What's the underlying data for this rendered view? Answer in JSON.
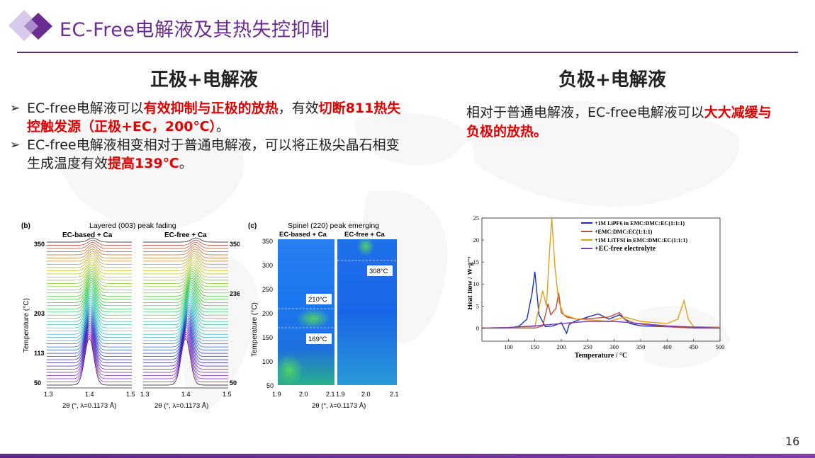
{
  "slide": {
    "title": "EC-Free电解液及其热失控抑制",
    "page_number": "16"
  },
  "left": {
    "heading": "正极+电解液",
    "bullet_mark": "➢",
    "bullet1": {
      "p1": "EC-free电解液可以",
      "r1": "有效抑制与正极的放热",
      "p2": "，有效",
      "r2": "切断811热失控触发源（正极+EC，200℃）",
      "p3": "。"
    },
    "bullet2": {
      "p1": "EC-free电解液相变相对于普通电解液，可以将正极尖晶石相变生成温度有效",
      "r1": "提高139℃",
      "p2": "。"
    }
  },
  "right": {
    "heading": "负极+电解液",
    "p1": "相对于普通电解液，EC-free电解液可以",
    "r1": "大大减缓与负极的放热。"
  },
  "fig_b": {
    "panel": "(b)",
    "title": "Layered (003) peak fading",
    "left_label": "EC-based + Ca",
    "right_label": "EC-free + Ca",
    "ylabel": "Temperature (°C)",
    "xlabel_left": "2θ (°, λ=0.1173 Å)",
    "xlabel_right": "2θ (°, λ=0.1173 Å)",
    "left_ticks": [
      "350",
      "203",
      "113",
      "50"
    ],
    "right_ticks": [
      "350",
      "236",
      "50"
    ],
    "x_ticks_left": [
      "1.3",
      "1.4",
      "1.5"
    ],
    "x_ticks_right": [
      "1.3",
      "1.4",
      "1.5"
    ]
  },
  "fig_c": {
    "panel": "(c)",
    "title": "Spinel (220) peak emerging",
    "left_label": "EC-based + Ca",
    "right_label": "EC-free + Ca",
    "ylabel": "Temperature (°C)",
    "xlabel": "2θ (°, λ=0.1173 Å)",
    "y_ticks": [
      "350",
      "300",
      "250",
      "200",
      "150",
      "100",
      "50"
    ],
    "x_ticks": [
      "1.9",
      "2.0",
      "2.1",
      "1.9",
      "2.0",
      "2.1"
    ],
    "annot_210": "210°C",
    "annot_169": "169°C",
    "annot_308": "308°C"
  },
  "chart_data": {
    "type": "line",
    "title": "",
    "xlabel": "Temperature / °C",
    "ylabel": "Heat flow / W·g⁻¹",
    "xlim": [
      50,
      500
    ],
    "ylim": [
      -3,
      25
    ],
    "x_ticks": [
      "100",
      "150",
      "200",
      "250",
      "300",
      "350",
      "400",
      "450",
      "500"
    ],
    "y_ticks": [
      "0",
      "5",
      "10",
      "15",
      "20",
      "25"
    ],
    "legend_position": "top-right",
    "series": [
      {
        "name": "+1M LiPF6 in EMC:DMC:EC(1:1:1)",
        "color": "#1f2fbf",
        "x": [
          50,
          100,
          120,
          135,
          145,
          150,
          158,
          170,
          185,
          200,
          210,
          215,
          225,
          250,
          270,
          290,
          310,
          330,
          350,
          400,
          450,
          500
        ],
        "y": [
          0,
          0,
          0.4,
          2.0,
          8.0,
          12.8,
          3.0,
          0.3,
          0.5,
          1.2,
          -1.2,
          0.8,
          1.5,
          2.5,
          3.2,
          2.0,
          3.0,
          1.0,
          0.5,
          0.3,
          0,
          0
        ]
      },
      {
        "name": "+EMC:DMC:EC(1:1:1)",
        "color": "#b8503a",
        "x": [
          50,
          150,
          165,
          175,
          180,
          190,
          195,
          200,
          210,
          230,
          260,
          290,
          310,
          320,
          340,
          400,
          450,
          500
        ],
        "y": [
          0,
          0,
          0.5,
          5.5,
          3.0,
          4.5,
          8.0,
          3.5,
          2.5,
          2.0,
          2.2,
          2.5,
          3.5,
          2.0,
          1.0,
          0.3,
          0,
          0
        ]
      },
      {
        "name": "+1M LiTFSI in EMC:DMC:EC(1:1:1)",
        "color": "#e0a01a",
        "x": [
          50,
          150,
          165,
          172,
          178,
          182,
          188,
          195,
          205,
          230,
          260,
          290,
          320,
          350,
          400,
          420,
          432,
          440,
          450,
          500
        ],
        "y": [
          0,
          0.3,
          8.5,
          5.0,
          18.0,
          25.0,
          14.0,
          6.0,
          3.0,
          2.0,
          1.8,
          1.5,
          2.5,
          1.5,
          1.0,
          2.0,
          6.2,
          2.0,
          0.3,
          0.2
        ]
      },
      {
        "name": "+EC-free electrolyte",
        "color": "#7a3fb0",
        "x": [
          50,
          100,
          150,
          200,
          250,
          300,
          350,
          400,
          450,
          500
        ],
        "y": [
          0,
          0.1,
          0.5,
          1.0,
          1.5,
          1.5,
          1.0,
          0.5,
          0.2,
          0
        ]
      }
    ]
  }
}
